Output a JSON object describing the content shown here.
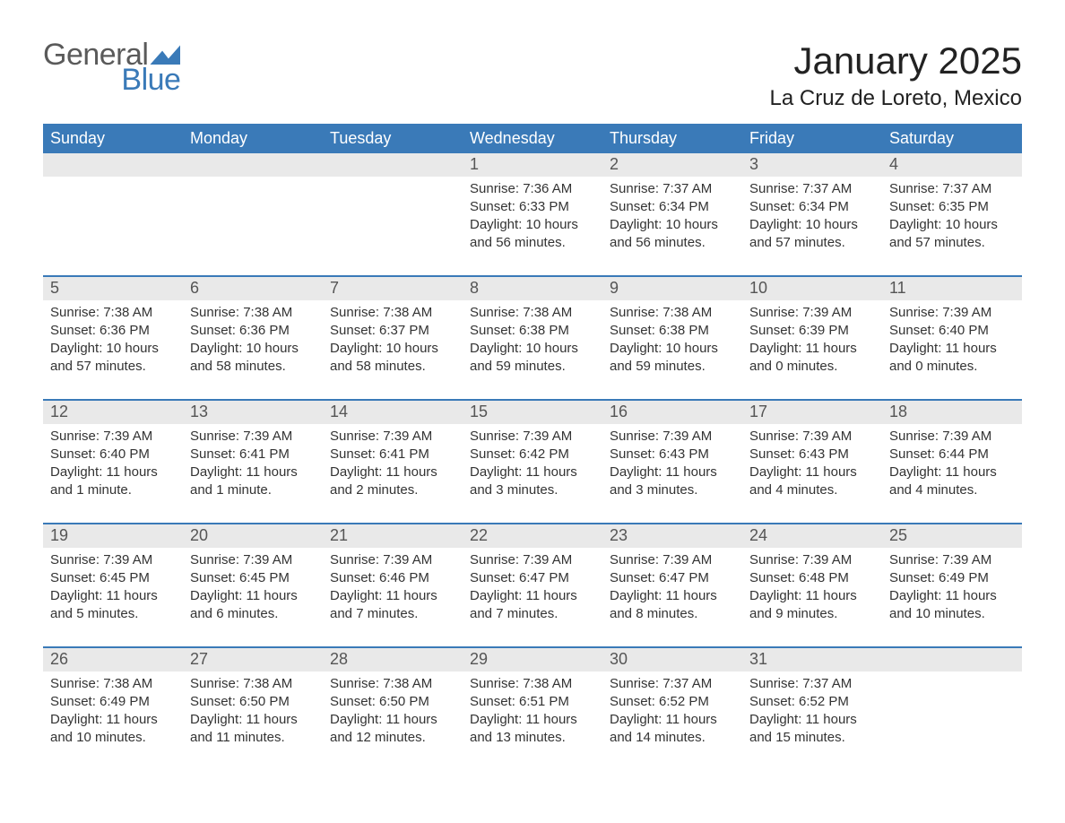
{
  "logo": {
    "general": "General",
    "blue": "Blue"
  },
  "title": "January 2025",
  "location": "La Cruz de Loreto, Mexico",
  "colors": {
    "header_bg": "#3a7ab8",
    "header_text": "#ffffff",
    "daynum_bg": "#e9e9e9",
    "row_border": "#3a7ab8",
    "page_bg": "#ffffff",
    "body_text": "#333333"
  },
  "weekdays": [
    "Sunday",
    "Monday",
    "Tuesday",
    "Wednesday",
    "Thursday",
    "Friday",
    "Saturday"
  ],
  "weeks": [
    [
      null,
      null,
      null,
      {
        "day": "1",
        "sunrise": "Sunrise: 7:36 AM",
        "sunset": "Sunset: 6:33 PM",
        "daylight": "Daylight: 10 hours and 56 minutes."
      },
      {
        "day": "2",
        "sunrise": "Sunrise: 7:37 AM",
        "sunset": "Sunset: 6:34 PM",
        "daylight": "Daylight: 10 hours and 56 minutes."
      },
      {
        "day": "3",
        "sunrise": "Sunrise: 7:37 AM",
        "sunset": "Sunset: 6:34 PM",
        "daylight": "Daylight: 10 hours and 57 minutes."
      },
      {
        "day": "4",
        "sunrise": "Sunrise: 7:37 AM",
        "sunset": "Sunset: 6:35 PM",
        "daylight": "Daylight: 10 hours and 57 minutes."
      }
    ],
    [
      {
        "day": "5",
        "sunrise": "Sunrise: 7:38 AM",
        "sunset": "Sunset: 6:36 PM",
        "daylight": "Daylight: 10 hours and 57 minutes."
      },
      {
        "day": "6",
        "sunrise": "Sunrise: 7:38 AM",
        "sunset": "Sunset: 6:36 PM",
        "daylight": "Daylight: 10 hours and 58 minutes."
      },
      {
        "day": "7",
        "sunrise": "Sunrise: 7:38 AM",
        "sunset": "Sunset: 6:37 PM",
        "daylight": "Daylight: 10 hours and 58 minutes."
      },
      {
        "day": "8",
        "sunrise": "Sunrise: 7:38 AM",
        "sunset": "Sunset: 6:38 PM",
        "daylight": "Daylight: 10 hours and 59 minutes."
      },
      {
        "day": "9",
        "sunrise": "Sunrise: 7:38 AM",
        "sunset": "Sunset: 6:38 PM",
        "daylight": "Daylight: 10 hours and 59 minutes."
      },
      {
        "day": "10",
        "sunrise": "Sunrise: 7:39 AM",
        "sunset": "Sunset: 6:39 PM",
        "daylight": "Daylight: 11 hours and 0 minutes."
      },
      {
        "day": "11",
        "sunrise": "Sunrise: 7:39 AM",
        "sunset": "Sunset: 6:40 PM",
        "daylight": "Daylight: 11 hours and 0 minutes."
      }
    ],
    [
      {
        "day": "12",
        "sunrise": "Sunrise: 7:39 AM",
        "sunset": "Sunset: 6:40 PM",
        "daylight": "Daylight: 11 hours and 1 minute."
      },
      {
        "day": "13",
        "sunrise": "Sunrise: 7:39 AM",
        "sunset": "Sunset: 6:41 PM",
        "daylight": "Daylight: 11 hours and 1 minute."
      },
      {
        "day": "14",
        "sunrise": "Sunrise: 7:39 AM",
        "sunset": "Sunset: 6:41 PM",
        "daylight": "Daylight: 11 hours and 2 minutes."
      },
      {
        "day": "15",
        "sunrise": "Sunrise: 7:39 AM",
        "sunset": "Sunset: 6:42 PM",
        "daylight": "Daylight: 11 hours and 3 minutes."
      },
      {
        "day": "16",
        "sunrise": "Sunrise: 7:39 AM",
        "sunset": "Sunset: 6:43 PM",
        "daylight": "Daylight: 11 hours and 3 minutes."
      },
      {
        "day": "17",
        "sunrise": "Sunrise: 7:39 AM",
        "sunset": "Sunset: 6:43 PM",
        "daylight": "Daylight: 11 hours and 4 minutes."
      },
      {
        "day": "18",
        "sunrise": "Sunrise: 7:39 AM",
        "sunset": "Sunset: 6:44 PM",
        "daylight": "Daylight: 11 hours and 4 minutes."
      }
    ],
    [
      {
        "day": "19",
        "sunrise": "Sunrise: 7:39 AM",
        "sunset": "Sunset: 6:45 PM",
        "daylight": "Daylight: 11 hours and 5 minutes."
      },
      {
        "day": "20",
        "sunrise": "Sunrise: 7:39 AM",
        "sunset": "Sunset: 6:45 PM",
        "daylight": "Daylight: 11 hours and 6 minutes."
      },
      {
        "day": "21",
        "sunrise": "Sunrise: 7:39 AM",
        "sunset": "Sunset: 6:46 PM",
        "daylight": "Daylight: 11 hours and 7 minutes."
      },
      {
        "day": "22",
        "sunrise": "Sunrise: 7:39 AM",
        "sunset": "Sunset: 6:47 PM",
        "daylight": "Daylight: 11 hours and 7 minutes."
      },
      {
        "day": "23",
        "sunrise": "Sunrise: 7:39 AM",
        "sunset": "Sunset: 6:47 PM",
        "daylight": "Daylight: 11 hours and 8 minutes."
      },
      {
        "day": "24",
        "sunrise": "Sunrise: 7:39 AM",
        "sunset": "Sunset: 6:48 PM",
        "daylight": "Daylight: 11 hours and 9 minutes."
      },
      {
        "day": "25",
        "sunrise": "Sunrise: 7:39 AM",
        "sunset": "Sunset: 6:49 PM",
        "daylight": "Daylight: 11 hours and 10 minutes."
      }
    ],
    [
      {
        "day": "26",
        "sunrise": "Sunrise: 7:38 AM",
        "sunset": "Sunset: 6:49 PM",
        "daylight": "Daylight: 11 hours and 10 minutes."
      },
      {
        "day": "27",
        "sunrise": "Sunrise: 7:38 AM",
        "sunset": "Sunset: 6:50 PM",
        "daylight": "Daylight: 11 hours and 11 minutes."
      },
      {
        "day": "28",
        "sunrise": "Sunrise: 7:38 AM",
        "sunset": "Sunset: 6:50 PM",
        "daylight": "Daylight: 11 hours and 12 minutes."
      },
      {
        "day": "29",
        "sunrise": "Sunrise: 7:38 AM",
        "sunset": "Sunset: 6:51 PM",
        "daylight": "Daylight: 11 hours and 13 minutes."
      },
      {
        "day": "30",
        "sunrise": "Sunrise: 7:37 AM",
        "sunset": "Sunset: 6:52 PM",
        "daylight": "Daylight: 11 hours and 14 minutes."
      },
      {
        "day": "31",
        "sunrise": "Sunrise: 7:37 AM",
        "sunset": "Sunset: 6:52 PM",
        "daylight": "Daylight: 11 hours and 15 minutes."
      },
      null
    ]
  ]
}
